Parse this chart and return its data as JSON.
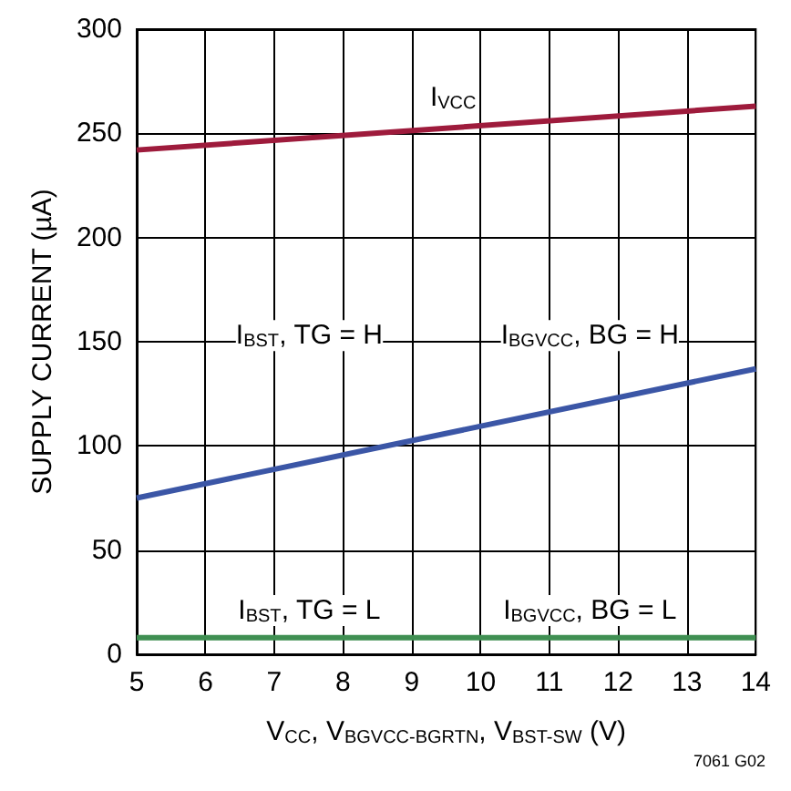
{
  "chart_data": {
    "type": "line",
    "xlabel": "V$_{CC}$, V$_{BGVCC-BGRTN}$, V$_{BST-SW}$ (V)",
    "ylabel": "SUPPLY CURRENT (µA)",
    "x": [
      5,
      14
    ],
    "series": [
      {
        "color": "#9e1b3c",
        "values": [
          242,
          263
        ]
      },
      {
        "color": "#3b56a6",
        "values": [
          75,
          137
        ]
      },
      {
        "color": "#3f8f52",
        "values": [
          8,
          8
        ]
      }
    ],
    "xlim": [
      5,
      14
    ],
    "xticks": [
      5,
      6,
      7,
      8,
      9,
      10,
      11,
      12,
      13,
      14
    ],
    "ylim": [
      0,
      300
    ],
    "yticks": [
      0,
      50,
      100,
      150,
      200,
      250,
      300
    ],
    "grid": true,
    "marker": "none",
    "line_style": "solid",
    "annotations": [
      {
        "text": "I$_{VCC}$",
        "x": 9.6,
        "y": 267
      },
      "I$_{BST}$, TG = H",
      "I$_{BGVCC}$, BG = H",
      "I$_{BST}$, TG = L",
      "I$_{BGVCC}$, BG = L",
      "7061 G02"
    ]
  }
}
